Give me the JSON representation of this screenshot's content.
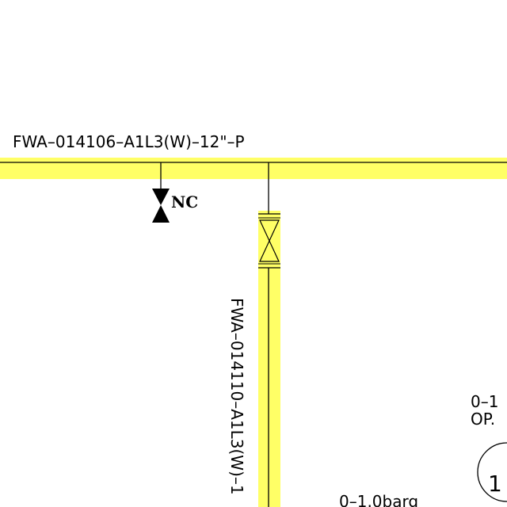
{
  "colors": {
    "highlight": "#ffff66",
    "line": "#000000",
    "background": "#ffffff"
  },
  "labels": {
    "main_line_tag": "FWA–014106–A1L3(W)–12\"–P",
    "branch_line_tag": "FWA–014110–A1L3(W)–1",
    "valve_status": "NC",
    "range_label_bottom": "0–1.0barg",
    "range_label_right": "0–1",
    "op_label": "OP.",
    "instrument_label": "1"
  },
  "icons": {
    "drain_valve": "gate-valve-filled-icon",
    "branch_valve": "gate-valve-outline-icon",
    "instrument": "instrument-bubble-icon"
  }
}
